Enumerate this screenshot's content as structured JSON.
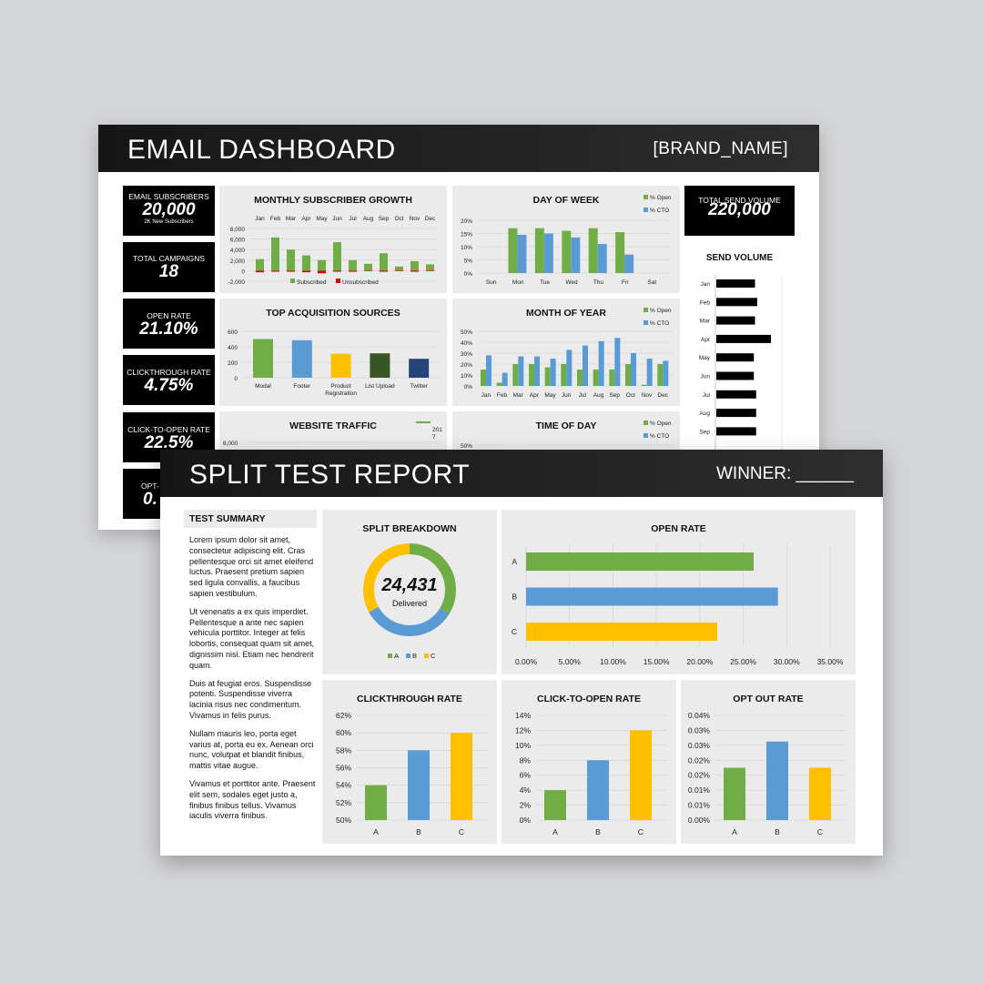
{
  "dashboard": {
    "title": "EMAIL DASHBOARD",
    "brand": "[BRAND_NAME]",
    "kpis": [
      {
        "label": "EMAIL SUBSCRIBERS",
        "value": "20,000",
        "sub": "2K New Subscribers"
      },
      {
        "label": "TOTAL CAMPAIGNS",
        "value": "18"
      },
      {
        "label": "OPEN RATE",
        "value": "21.10%"
      },
      {
        "label": "CLICKTHROUGH RATE",
        "value": "4.75%"
      },
      {
        "label": "CLICK-TO-OPEN RATE",
        "value": "22.5%"
      },
      {
        "label": "OPT-",
        "value": "0."
      }
    ],
    "total_send": {
      "label": "TOTAL SEND VOLUME",
      "value": "220,000"
    },
    "send_volume_title": "SEND VOLUME",
    "colors": {
      "green": "#70ad47",
      "blue": "#5b9bd5",
      "yellow": "#ffc000",
      "red": "#e00000",
      "darkgreen": "#375623",
      "navy": "#264478"
    }
  },
  "split": {
    "title": "SPLIT TEST REPORT",
    "winner": "WINNER: ______",
    "summary_title": "TEST SUMMARY",
    "paragraphs": [
      "Lorem ipsum dolor sit amet, consectetur adipiscing elit. Cras pellentesque orci sit amet eleifend luctus. Praesent pretium sapien sed ligula convallis, a faucibus sapien vestibulum.",
      "Ut venenatis a ex quis imperdiet. Pellentesque a ante nec sapien vehicula porttitor. Integer at felis lobortis, consequat quam sit amet, dignissim nisi. Etiam nec hendrerit quam.",
      "Duis at feugiat eros. Suspendisse potenti. Suspendisse viverra lacinia risus nec condimentum. Vivamus in felis purus.",
      "Nullam mauris leo, porta eget varius at, porta eu ex. Aenean orci nunc, volutpat et blandit finibus, mattis vitae augue.",
      "Vivamus et porttitor ante. Praesent elit sem, sodales eget justo a, finibus finibus tellus. Vivamus iaculis viverra finibus."
    ],
    "donut_value": "24,431",
    "donut_label": "Delivered"
  },
  "chart_data": [
    {
      "id": "subscriber-growth",
      "type": "bar",
      "title": "MONTHLY SUBSCRIBER GROWTH",
      "categories": [
        "Jan",
        "Feb",
        "Mar",
        "Apr",
        "May",
        "Jun",
        "Jul",
        "Aug",
        "Sep",
        "Oct",
        "Nov",
        "Dec"
      ],
      "series": [
        {
          "name": "Subscribed",
          "values": [
            2200,
            6300,
            4000,
            2900,
            2000,
            5400,
            2000,
            1300,
            3300,
            800,
            1800,
            1200
          ]
        },
        {
          "name": "Unsubscribed",
          "values": [
            -300,
            -200,
            -200,
            -300,
            -500,
            -200,
            -200,
            -100,
            -200,
            -100,
            -200,
            -100
          ]
        }
      ],
      "ylim": [
        -2000,
        8000
      ],
      "yticks": [
        "8,000",
        "6,000",
        "4,000",
        "2,000",
        "0",
        "-2,000"
      ]
    },
    {
      "id": "day-of-week",
      "type": "bar",
      "title": "DAY OF WEEK",
      "categories": [
        "Sun",
        "Mon",
        "Tue",
        "Wed",
        "Thu",
        "Fri",
        "Sat"
      ],
      "series": [
        {
          "name": "% Open",
          "values": [
            0,
            17,
            17,
            16,
            17,
            15.5,
            0
          ]
        },
        {
          "name": "% CTO",
          "values": [
            0,
            14.5,
            15,
            13.5,
            11,
            7,
            0
          ]
        }
      ],
      "ylim": [
        0,
        20
      ],
      "yticks": [
        "20%",
        "15%",
        "10%",
        "5%",
        "0%"
      ]
    },
    {
      "id": "acquisition",
      "type": "bar",
      "title": "TOP ACQUISITION SOURCES",
      "categories": [
        "Modal",
        "Footer",
        "Product Registration",
        "List Upload",
        "Twitter"
      ],
      "values": [
        500,
        485,
        310,
        315,
        245
      ],
      "ylim": [
        0,
        600
      ],
      "yticks": [
        "600",
        "400",
        "200",
        "0"
      ]
    },
    {
      "id": "month-of-year",
      "type": "bar",
      "title": "MONTH OF YEAR",
      "categories": [
        "Jan",
        "Feb",
        "Mar",
        "Apr",
        "May",
        "Jun",
        "Jul",
        "Aug",
        "Sep",
        "Oct",
        "Nov",
        "Dec"
      ],
      "series": [
        {
          "name": "% Open",
          "values": [
            15,
            3,
            20,
            20,
            17,
            20,
            15,
            15,
            15,
            20,
            1,
            20
          ]
        },
        {
          "name": "% CTO",
          "values": [
            28,
            12,
            27,
            27,
            25,
            33,
            37,
            41,
            44,
            30,
            25,
            23
          ]
        }
      ],
      "ylim": [
        0,
        50
      ],
      "yticks": [
        "50%",
        "40%",
        "30%",
        "20%",
        "10%",
        "0%"
      ]
    },
    {
      "id": "website-traffic",
      "type": "line",
      "title": "WEBSITE TRAFFIC",
      "legend": [
        "201 7"
      ],
      "yticks": [
        "8,000"
      ]
    },
    {
      "id": "time-of-day",
      "type": "bar",
      "title": "TIME OF DAY",
      "legend": [
        "% Open",
        "% CTO"
      ],
      "yticks": [
        "50%"
      ]
    },
    {
      "id": "send-volume",
      "type": "bar",
      "title": "SEND VOLUME",
      "categories": [
        "Jan",
        "Feb",
        "Mar",
        "Apr",
        "May",
        "Jun",
        "Jul",
        "Aug",
        "Sep"
      ],
      "values": [
        17000,
        18000,
        17000,
        24000,
        16500,
        16500,
        17500,
        17500,
        17500
      ]
    },
    {
      "id": "split-breakdown",
      "type": "pie",
      "title": "SPLIT BREAKDOWN",
      "categories": [
        "A",
        "B",
        "C"
      ],
      "values": [
        33.7,
        33.3,
        33.0
      ]
    },
    {
      "id": "open-rate",
      "type": "bar",
      "title": "OPEN RATE",
      "categories": [
        "A",
        "B",
        "C"
      ],
      "values": [
        26.2,
        29.0,
        22.0
      ],
      "xlim": [
        0,
        35
      ],
      "xticks": [
        "0.00%",
        "5.00%",
        "10.00%",
        "15.00%",
        "20.00%",
        "25.00%",
        "30.00%",
        "35.00%"
      ]
    },
    {
      "id": "clickthrough-rate",
      "type": "bar",
      "title": "CLICKTHROUGH RATE",
      "categories": [
        "A",
        "B",
        "C"
      ],
      "values": [
        54.0,
        58.0,
        60.0
      ],
      "ylim": [
        50,
        62
      ],
      "yticks": [
        "62%",
        "60%",
        "58%",
        "56%",
        "54%",
        "52%",
        "50%"
      ]
    },
    {
      "id": "click-to-open-rate",
      "type": "bar",
      "title": "CLICK-TO-OPEN RATE",
      "categories": [
        "A",
        "B",
        "C"
      ],
      "values": [
        4.0,
        8.0,
        12.0
      ],
      "ylim": [
        0,
        14
      ],
      "yticks": [
        "14%",
        "12%",
        "10%",
        "8%",
        "6%",
        "4%",
        "2%",
        "0%"
      ]
    },
    {
      "id": "opt-out-rate",
      "type": "bar",
      "title": "OPT OUT RATE",
      "categories": [
        "A",
        "B",
        "C"
      ],
      "values": [
        0.02,
        0.03,
        0.02
      ],
      "ylim": [
        0,
        0.04
      ],
      "yticks": [
        "0.04%",
        "0.03%",
        "0.03%",
        "0.02%",
        "0.02%",
        "0.01%",
        "0.01%",
        "0.00%"
      ]
    }
  ]
}
